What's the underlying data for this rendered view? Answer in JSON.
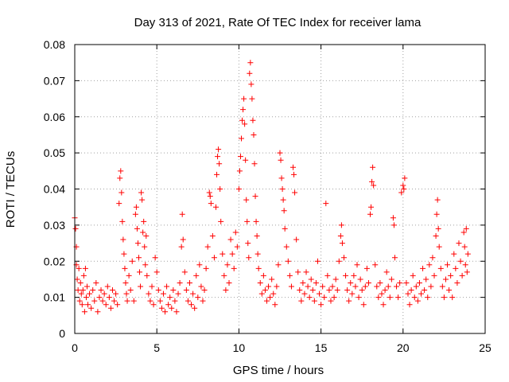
{
  "chart_data": {
    "type": "scatter",
    "title": "Day 313 of 2021, Rate Of TEC Index for receiver lama",
    "xlabel": "GPS time / hours",
    "ylabel": "ROTI / TECUs",
    "xlim": [
      0,
      25
    ],
    "ylim": [
      0,
      0.08
    ],
    "x_ticks": [
      0,
      5,
      10,
      15,
      20,
      25
    ],
    "x_tick_labels": [
      "0",
      "5",
      "10",
      "15",
      "20",
      "25"
    ],
    "y_ticks": [
      0,
      0.01,
      0.02,
      0.03,
      0.04,
      0.05,
      0.06,
      0.07,
      0.08
    ],
    "y_tick_labels": [
      "0",
      "0.01",
      "0.02",
      "0.03",
      "0.04",
      "0.05",
      "0.06",
      "0.07",
      "0.08"
    ],
    "grid": true,
    "marker": "plus",
    "color": "#ff0000",
    "points": [
      [
        0.0,
        0.032
      ],
      [
        0.05,
        0.029
      ],
      [
        0.1,
        0.024
      ],
      [
        0.1,
        0.019
      ],
      [
        0.15,
        0.015
      ],
      [
        0.2,
        0.012
      ],
      [
        0.25,
        0.018
      ],
      [
        0.3,
        0.009
      ],
      [
        0.35,
        0.014
      ],
      [
        0.4,
        0.011
      ],
      [
        0.45,
        0.008
      ],
      [
        0.5,
        0.012
      ],
      [
        0.55,
        0.016
      ],
      [
        0.6,
        0.006
      ],
      [
        0.65,
        0.018
      ],
      [
        0.7,
        0.01
      ],
      [
        0.75,
        0.013
      ],
      [
        0.8,
        0.008
      ],
      [
        0.9,
        0.011
      ],
      [
        1.0,
        0.007
      ],
      [
        1.1,
        0.012
      ],
      [
        1.2,
        0.009
      ],
      [
        1.3,
        0.014
      ],
      [
        1.4,
        0.006
      ],
      [
        1.5,
        0.01
      ],
      [
        1.6,
        0.012
      ],
      [
        1.7,
        0.009
      ],
      [
        1.8,
        0.011
      ],
      [
        1.9,
        0.008
      ],
      [
        2.0,
        0.013
      ],
      [
        2.1,
        0.01
      ],
      [
        2.2,
        0.007
      ],
      [
        2.3,
        0.012
      ],
      [
        2.4,
        0.009
      ],
      [
        2.5,
        0.011
      ],
      [
        2.6,
        0.008
      ],
      [
        2.7,
        0.036
      ],
      [
        2.75,
        0.043
      ],
      [
        2.8,
        0.045
      ],
      [
        2.85,
        0.039
      ],
      [
        2.9,
        0.031
      ],
      [
        2.95,
        0.026
      ],
      [
        3.0,
        0.022
      ],
      [
        3.05,
        0.018
      ],
      [
        3.1,
        0.014
      ],
      [
        3.15,
        0.011
      ],
      [
        3.2,
        0.009
      ],
      [
        3.3,
        0.016
      ],
      [
        3.4,
        0.012
      ],
      [
        3.5,
        0.02
      ],
      [
        3.6,
        0.009
      ],
      [
        3.7,
        0.033
      ],
      [
        3.75,
        0.035
      ],
      [
        3.8,
        0.029
      ],
      [
        3.85,
        0.025
      ],
      [
        3.9,
        0.021
      ],
      [
        3.95,
        0.017
      ],
      [
        4.0,
        0.013
      ],
      [
        4.05,
        0.039
      ],
      [
        4.1,
        0.037
      ],
      [
        4.15,
        0.028
      ],
      [
        4.2,
        0.031
      ],
      [
        4.25,
        0.024
      ],
      [
        4.3,
        0.019
      ],
      [
        4.35,
        0.027
      ],
      [
        4.4,
        0.016
      ],
      [
        4.5,
        0.011
      ],
      [
        4.6,
        0.009
      ],
      [
        4.7,
        0.013
      ],
      [
        4.8,
        0.008
      ],
      [
        4.9,
        0.021
      ],
      [
        5.0,
        0.017
      ],
      [
        5.1,
        0.012
      ],
      [
        5.2,
        0.009
      ],
      [
        5.3,
        0.007
      ],
      [
        5.4,
        0.011
      ],
      [
        5.5,
        0.006
      ],
      [
        5.6,
        0.013
      ],
      [
        5.7,
        0.008
      ],
      [
        5.8,
        0.01
      ],
      [
        5.9,
        0.007
      ],
      [
        6.0,
        0.012
      ],
      [
        6.1,
        0.009
      ],
      [
        6.2,
        0.006
      ],
      [
        6.3,
        0.011
      ],
      [
        6.4,
        0.014
      ],
      [
        6.5,
        0.024
      ],
      [
        6.55,
        0.033
      ],
      [
        6.6,
        0.026
      ],
      [
        6.7,
        0.017
      ],
      [
        6.8,
        0.012
      ],
      [
        6.9,
        0.009
      ],
      [
        7.0,
        0.014
      ],
      [
        7.1,
        0.008
      ],
      [
        7.2,
        0.011
      ],
      [
        7.3,
        0.007
      ],
      [
        7.4,
        0.016
      ],
      [
        7.5,
        0.01
      ],
      [
        7.6,
        0.019
      ],
      [
        7.7,
        0.013
      ],
      [
        7.8,
        0.009
      ],
      [
        7.9,
        0.012
      ],
      [
        8.0,
        0.018
      ],
      [
        8.1,
        0.024
      ],
      [
        8.2,
        0.039
      ],
      [
        8.25,
        0.038
      ],
      [
        8.3,
        0.036
      ],
      [
        8.4,
        0.027
      ],
      [
        8.5,
        0.021
      ],
      [
        8.6,
        0.035
      ],
      [
        8.65,
        0.044
      ],
      [
        8.7,
        0.049
      ],
      [
        8.75,
        0.051
      ],
      [
        8.8,
        0.047
      ],
      [
        8.85,
        0.04
      ],
      [
        8.9,
        0.031
      ],
      [
        9.0,
        0.022
      ],
      [
        9.1,
        0.016
      ],
      [
        9.2,
        0.012
      ],
      [
        9.3,
        0.019
      ],
      [
        9.4,
        0.014
      ],
      [
        9.5,
        0.026
      ],
      [
        9.6,
        0.022
      ],
      [
        9.7,
        0.018
      ],
      [
        9.8,
        0.028
      ],
      [
        9.9,
        0.024
      ],
      [
        10.0,
        0.04
      ],
      [
        10.05,
        0.045
      ],
      [
        10.1,
        0.049
      ],
      [
        10.15,
        0.054
      ],
      [
        10.2,
        0.059
      ],
      [
        10.25,
        0.062
      ],
      [
        10.3,
        0.065
      ],
      [
        10.35,
        0.058
      ],
      [
        10.4,
        0.048
      ],
      [
        10.45,
        0.037
      ],
      [
        10.5,
        0.031
      ],
      [
        10.55,
        0.025
      ],
      [
        10.6,
        0.021
      ],
      [
        10.65,
        0.072
      ],
      [
        10.7,
        0.075
      ],
      [
        10.75,
        0.069
      ],
      [
        10.8,
        0.065
      ],
      [
        10.85,
        0.059
      ],
      [
        10.9,
        0.055
      ],
      [
        10.95,
        0.047
      ],
      [
        11.0,
        0.038
      ],
      [
        11.05,
        0.031
      ],
      [
        11.1,
        0.027
      ],
      [
        11.15,
        0.022
      ],
      [
        11.2,
        0.018
      ],
      [
        11.3,
        0.014
      ],
      [
        11.4,
        0.011
      ],
      [
        11.5,
        0.016
      ],
      [
        11.6,
        0.012
      ],
      [
        11.7,
        0.009
      ],
      [
        11.8,
        0.013
      ],
      [
        11.9,
        0.01
      ],
      [
        12.0,
        0.015
      ],
      [
        12.1,
        0.011
      ],
      [
        12.2,
        0.008
      ],
      [
        12.3,
        0.013
      ],
      [
        12.4,
        0.019
      ],
      [
        12.5,
        0.05
      ],
      [
        12.55,
        0.048
      ],
      [
        12.6,
        0.043
      ],
      [
        12.65,
        0.04
      ],
      [
        12.7,
        0.037
      ],
      [
        12.75,
        0.034
      ],
      [
        12.8,
        0.029
      ],
      [
        12.9,
        0.024
      ],
      [
        13.0,
        0.02
      ],
      [
        13.1,
        0.016
      ],
      [
        13.2,
        0.013
      ],
      [
        13.3,
        0.046
      ],
      [
        13.35,
        0.044
      ],
      [
        13.4,
        0.039
      ],
      [
        13.5,
        0.026
      ],
      [
        13.6,
        0.017
      ],
      [
        13.7,
        0.012
      ],
      [
        13.8,
        0.009
      ],
      [
        13.9,
        0.014
      ],
      [
        14.0,
        0.011
      ],
      [
        14.1,
        0.017
      ],
      [
        14.2,
        0.013
      ],
      [
        14.3,
        0.01
      ],
      [
        14.4,
        0.015
      ],
      [
        14.5,
        0.012
      ],
      [
        14.6,
        0.009
      ],
      [
        14.7,
        0.014
      ],
      [
        14.8,
        0.02
      ],
      [
        14.9,
        0.011
      ],
      [
        15.0,
        0.008
      ],
      [
        15.1,
        0.013
      ],
      [
        15.2,
        0.01
      ],
      [
        15.3,
        0.036
      ],
      [
        15.4,
        0.016
      ],
      [
        15.5,
        0.012
      ],
      [
        15.6,
        0.009
      ],
      [
        15.7,
        0.013
      ],
      [
        15.8,
        0.01
      ],
      [
        15.9,
        0.015
      ],
      [
        16.0,
        0.012
      ],
      [
        16.1,
        0.02
      ],
      [
        16.2,
        0.027
      ],
      [
        16.25,
        0.03
      ],
      [
        16.3,
        0.025
      ],
      [
        16.4,
        0.021
      ],
      [
        16.5,
        0.016
      ],
      [
        16.6,
        0.012
      ],
      [
        16.7,
        0.009
      ],
      [
        16.8,
        0.014
      ],
      [
        16.9,
        0.011
      ],
      [
        17.0,
        0.016
      ],
      [
        17.1,
        0.013
      ],
      [
        17.2,
        0.019
      ],
      [
        17.3,
        0.01
      ],
      [
        17.4,
        0.015
      ],
      [
        17.5,
        0.012
      ],
      [
        17.6,
        0.008
      ],
      [
        17.7,
        0.013
      ],
      [
        17.8,
        0.018
      ],
      [
        17.9,
        0.014
      ],
      [
        18.0,
        0.033
      ],
      [
        18.05,
        0.035
      ],
      [
        18.1,
        0.042
      ],
      [
        18.15,
        0.046
      ],
      [
        18.2,
        0.041
      ],
      [
        18.3,
        0.019
      ],
      [
        18.4,
        0.013
      ],
      [
        18.5,
        0.01
      ],
      [
        18.6,
        0.014
      ],
      [
        18.7,
        0.011
      ],
      [
        18.8,
        0.008
      ],
      [
        18.9,
        0.012
      ],
      [
        19.0,
        0.017
      ],
      [
        19.1,
        0.013
      ],
      [
        19.2,
        0.01
      ],
      [
        19.3,
        0.015
      ],
      [
        19.4,
        0.032
      ],
      [
        19.45,
        0.03
      ],
      [
        19.5,
        0.021
      ],
      [
        19.6,
        0.013
      ],
      [
        19.7,
        0.01
      ],
      [
        19.8,
        0.014
      ],
      [
        19.9,
        0.039
      ],
      [
        20.0,
        0.041
      ],
      [
        20.05,
        0.04
      ],
      [
        20.1,
        0.043
      ],
      [
        20.2,
        0.014
      ],
      [
        20.3,
        0.011
      ],
      [
        20.4,
        0.008
      ],
      [
        20.5,
        0.012
      ],
      [
        20.6,
        0.016
      ],
      [
        20.7,
        0.01
      ],
      [
        20.8,
        0.013
      ],
      [
        20.9,
        0.009
      ],
      [
        21.0,
        0.014
      ],
      [
        21.1,
        0.011
      ],
      [
        21.2,
        0.018
      ],
      [
        21.3,
        0.012
      ],
      [
        21.4,
        0.015
      ],
      [
        21.5,
        0.01
      ],
      [
        21.6,
        0.019
      ],
      [
        21.7,
        0.013
      ],
      [
        21.8,
        0.021
      ],
      [
        21.9,
        0.016
      ],
      [
        22.0,
        0.027
      ],
      [
        22.05,
        0.033
      ],
      [
        22.1,
        0.037
      ],
      [
        22.15,
        0.029
      ],
      [
        22.2,
        0.024
      ],
      [
        22.3,
        0.018
      ],
      [
        22.4,
        0.013
      ],
      [
        22.5,
        0.01
      ],
      [
        22.6,
        0.015
      ],
      [
        22.7,
        0.019
      ],
      [
        22.8,
        0.012
      ],
      [
        22.9,
        0.016
      ],
      [
        23.0,
        0.01
      ],
      [
        23.1,
        0.022
      ],
      [
        23.2,
        0.018
      ],
      [
        23.3,
        0.014
      ],
      [
        23.4,
        0.025
      ],
      [
        23.5,
        0.02
      ],
      [
        23.6,
        0.016
      ],
      [
        23.7,
        0.028
      ],
      [
        23.75,
        0.024
      ],
      [
        23.8,
        0.019
      ],
      [
        23.85,
        0.029
      ],
      [
        23.9,
        0.017
      ],
      [
        23.95,
        0.022
      ]
    ]
  }
}
